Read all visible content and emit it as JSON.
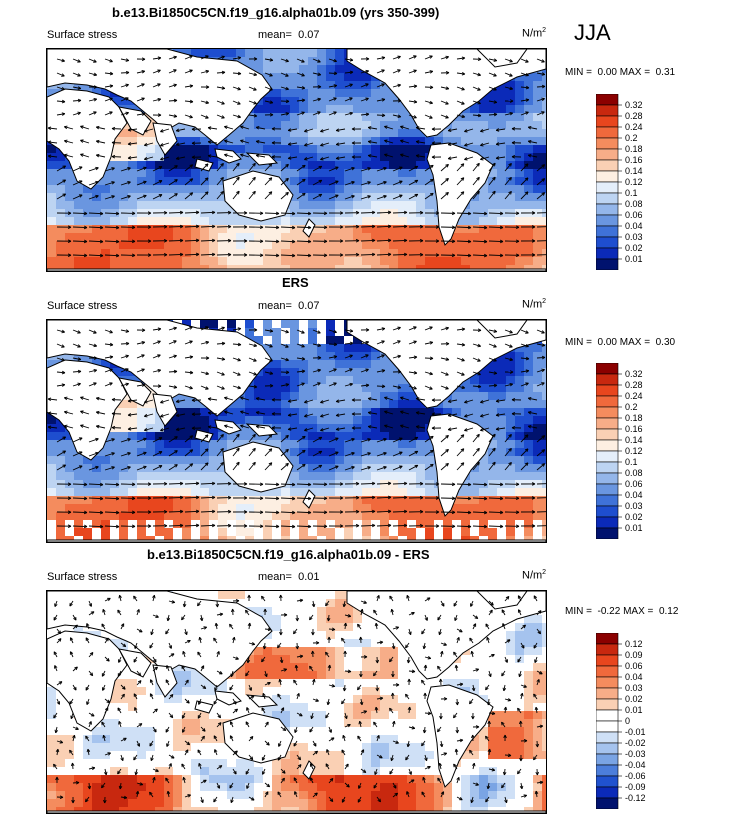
{
  "season": "JJA",
  "chart_data": [
    {
      "type": "heatmap",
      "title": "b.e13.Bi1850C5CN.f19_g16.alpha01b.09 (yrs 350-399)",
      "left_label": "Surface stress",
      "mean_label": "mean=",
      "mean_value": "0.07",
      "units": "N/m",
      "units_exp": "2",
      "min_label": "MIN =",
      "min_value": "0.00",
      "max_label": "MAX =",
      "max_value": "0.31",
      "colorbar_levels": [
        "0.32",
        "0.28",
        "0.24",
        "0.2",
        "0.18",
        "0.16",
        "0.14",
        "0.12",
        "0.1",
        "0.08",
        "0.06",
        "0.04",
        "0.03",
        "0.02",
        "0.01"
      ],
      "colorbar_colors": [
        "#8b0000",
        "#c8280f",
        "#e8461e",
        "#f0693c",
        "#f48c5e",
        "#f7ad88",
        "#fad0b4",
        "#fdefe2",
        "#e4eefa",
        "#bdd4f2",
        "#94b6ea",
        "#6a96e0",
        "#3f72d8",
        "#1e4ecf",
        "#0b2ab8",
        "#00126e"
      ],
      "style": "model"
    },
    {
      "type": "heatmap",
      "title": "ERS",
      "left_label": "Surface stress",
      "mean_label": "mean=",
      "mean_value": "0.07",
      "units": "N/m",
      "units_exp": "2",
      "min_label": "MIN =",
      "min_value": "0.00",
      "max_label": "MAX =",
      "max_value": "0.30",
      "colorbar_levels": [
        "0.32",
        "0.28",
        "0.24",
        "0.2",
        "0.18",
        "0.16",
        "0.14",
        "0.12",
        "0.1",
        "0.08",
        "0.06",
        "0.04",
        "0.03",
        "0.02",
        "0.01"
      ],
      "colorbar_colors": [
        "#8b0000",
        "#c8280f",
        "#e8461e",
        "#f0693c",
        "#f48c5e",
        "#f7ad88",
        "#fad0b4",
        "#fdefe2",
        "#e4eefa",
        "#bdd4f2",
        "#94b6ea",
        "#6a96e0",
        "#3f72d8",
        "#1e4ecf",
        "#0b2ab8",
        "#00126e"
      ],
      "style": "obs"
    },
    {
      "type": "heatmap",
      "title": "b.e13.Bi1850C5CN.f19_g16.alpha01b.09 - ERS",
      "left_label": "Surface stress",
      "mean_label": "mean=",
      "mean_value": "0.01",
      "units": "N/m",
      "units_exp": "2",
      "min_label": "MIN =",
      "min_value": "-0.22",
      "max_label": "MAX =",
      "max_value": "0.12",
      "colorbar_levels": [
        "0.12",
        "0.09",
        "0.06",
        "0.04",
        "0.03",
        "0.02",
        "0.01",
        "0",
        "-0.01",
        "-0.02",
        "-0.03",
        "-0.04",
        "-0.06",
        "-0.09",
        "-0.12"
      ],
      "colorbar_colors": [
        "#8b0000",
        "#c8280f",
        "#e8461e",
        "#f0693c",
        "#f48c5e",
        "#f7ad88",
        "#fad0b4",
        "#ffffff",
        "#ffffff",
        "#cfe0f6",
        "#a5c3ee",
        "#7aa4e4",
        "#4c7edb",
        "#2052cf",
        "#0b2ab8",
        "#00126e"
      ],
      "style": "diff"
    }
  ]
}
